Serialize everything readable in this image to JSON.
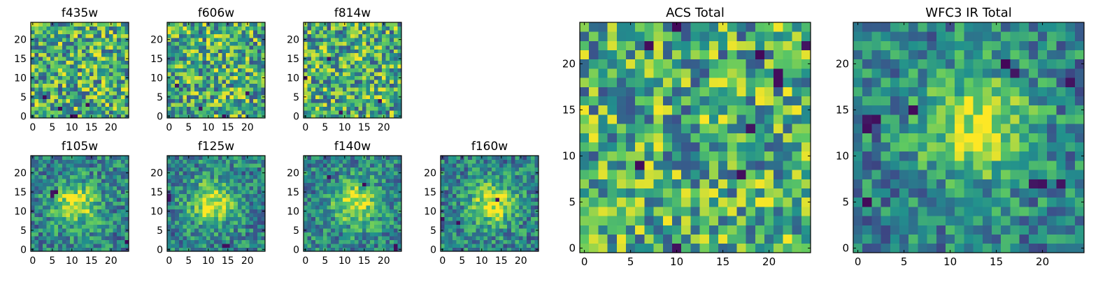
{
  "figure": {
    "colors": {
      "cmap": [
        "#440154",
        "#3b528b",
        "#21908d",
        "#5dc962",
        "#fde725"
      ]
    },
    "panels": [
      {
        "id": "f435w",
        "title": "f435w",
        "xticks": [
          "0",
          "5",
          "10",
          "15",
          "20"
        ],
        "yticks": [
          "0",
          "5",
          "10",
          "15",
          "20"
        ]
      },
      {
        "id": "f606w",
        "title": "f606w",
        "xticks": [
          "0",
          "5",
          "10",
          "15",
          "20"
        ],
        "yticks": [
          "0",
          "5",
          "10",
          "15",
          "20"
        ]
      },
      {
        "id": "f814w",
        "title": "f814w",
        "xticks": [
          "0",
          "5",
          "10",
          "15",
          "20"
        ],
        "yticks": [
          "0",
          "5",
          "10",
          "15",
          "20"
        ]
      },
      {
        "id": "f105w",
        "title": "f105w",
        "xticks": [
          "0",
          "5",
          "10",
          "15",
          "20"
        ],
        "yticks": [
          "0",
          "5",
          "10",
          "15",
          "20"
        ]
      },
      {
        "id": "f125w",
        "title": "f125w",
        "xticks": [
          "0",
          "5",
          "10",
          "15",
          "20"
        ],
        "yticks": [
          "0",
          "5",
          "10",
          "15",
          "20"
        ]
      },
      {
        "id": "f140w",
        "title": "f140w",
        "xticks": [
          "0",
          "5",
          "10",
          "15",
          "20"
        ],
        "yticks": [
          "0",
          "5",
          "10",
          "15",
          "20"
        ]
      },
      {
        "id": "f160w",
        "title": "f160w",
        "xticks": [
          "0",
          "5",
          "10",
          "15",
          "20"
        ],
        "yticks": [
          "0",
          "5",
          "10",
          "15",
          "20"
        ]
      },
      {
        "id": "acs-total",
        "title": "ACS Total",
        "xticks": [
          "0",
          "5",
          "10",
          "15",
          "20"
        ],
        "yticks": [
          "0",
          "5",
          "10",
          "15",
          "20"
        ]
      },
      {
        "id": "wfc3-ir-total",
        "title": "WFC3 IR Total",
        "xticks": [
          "0",
          "5",
          "10",
          "15",
          "20"
        ],
        "yticks": [
          "0",
          "5",
          "10",
          "15",
          "20"
        ]
      }
    ]
  },
  "chart_data": [
    {
      "type": "heatmap",
      "title": "f435w",
      "grid_size": [
        25,
        25
      ],
      "xlim": [
        -0.5,
        24.5
      ],
      "ylim": [
        -0.5,
        24.5
      ],
      "pattern": "noise",
      "dark_pixels": [
        [
          10,
          0
        ],
        [
          11,
          0
        ],
        [
          7,
          2
        ],
        [
          14,
          3
        ],
        [
          3,
          5
        ]
      ]
    },
    {
      "type": "heatmap",
      "title": "f606w",
      "grid_size": [
        25,
        25
      ],
      "xlim": [
        -0.5,
        24.5
      ],
      "ylim": [
        -0.5,
        24.5
      ],
      "pattern": "noise",
      "dark_pixels": [
        [
          8,
          2
        ],
        [
          14,
          0
        ],
        [
          2,
          8
        ],
        [
          20,
          6
        ]
      ]
    },
    {
      "type": "heatmap",
      "title": "f814w",
      "grid_size": [
        25,
        25
      ],
      "xlim": [
        -0.5,
        24.5
      ],
      "ylim": [
        -0.5,
        24.5
      ],
      "pattern": "noise",
      "dark_pixels": [
        [
          9,
          1
        ],
        [
          0,
          10
        ],
        [
          19,
          4
        ],
        [
          6,
          15
        ]
      ]
    },
    {
      "type": "heatmap",
      "title": "f105w",
      "grid_size": [
        25,
        25
      ],
      "xlim": [
        -0.5,
        24.5
      ],
      "ylim": [
        -0.5,
        24.5
      ],
      "pattern": "blob",
      "blob_center": [
        11,
        12
      ],
      "blob_radius": 4,
      "dark_pixels": [
        [
          5,
          14
        ],
        [
          6,
          15
        ],
        [
          5,
          15
        ],
        [
          24,
          2
        ]
      ]
    },
    {
      "type": "heatmap",
      "title": "f125w",
      "grid_size": [
        25,
        25
      ],
      "xlim": [
        -0.5,
        24.5
      ],
      "ylim": [
        -0.5,
        24.5
      ],
      "pattern": "blob",
      "blob_center": [
        11,
        12
      ],
      "blob_radius": 4,
      "dark_pixels": [
        [
          14,
          1
        ],
        [
          15,
          1
        ],
        [
          0,
          13
        ],
        [
          0,
          14
        ]
      ]
    },
    {
      "type": "heatmap",
      "title": "f140w",
      "grid_size": [
        25,
        25
      ],
      "xlim": [
        -0.5,
        24.5
      ],
      "ylim": [
        -0.5,
        24.5
      ],
      "pattern": "blob",
      "blob_center": [
        13,
        12
      ],
      "blob_radius": 4,
      "dark_pixels": [
        [
          15,
          17
        ],
        [
          23,
          1
        ],
        [
          23,
          0
        ],
        [
          6,
          19
        ]
      ]
    },
    {
      "type": "heatmap",
      "title": "f160w",
      "grid_size": [
        25,
        25
      ],
      "xlim": [
        -0.5,
        24.5
      ],
      "ylim": [
        -0.5,
        24.5
      ],
      "pattern": "blob",
      "blob_center": [
        13,
        12
      ],
      "blob_radius": 4,
      "dark_pixels": [
        [
          14,
          13
        ],
        [
          4,
          7
        ],
        [
          0,
          8
        ]
      ]
    },
    {
      "type": "heatmap",
      "title": "ACS Total",
      "grid_size": [
        25,
        25
      ],
      "xlim": [
        -0.5,
        24.5
      ],
      "ylim": [
        -0.5,
        24.5
      ],
      "pattern": "noise",
      "dark_pixels": [
        [
          10,
          24
        ],
        [
          7,
          22
        ],
        [
          24,
          22
        ],
        [
          21,
          19
        ],
        [
          21,
          18
        ],
        [
          6,
          9
        ],
        [
          17,
          8
        ],
        [
          10,
          0
        ],
        [
          19,
          21
        ],
        [
          18,
          13
        ]
      ]
    },
    {
      "type": "heatmap",
      "title": "WFC3 IR Total",
      "grid_size": [
        25,
        25
      ],
      "xlim": [
        -0.5,
        24.5
      ],
      "ylim": [
        -0.5,
        24.5
      ],
      "pattern": "blob",
      "blob_center": [
        13,
        13
      ],
      "blob_radius": 4,
      "dark_pixels": [
        [
          1,
          14
        ],
        [
          2,
          14
        ],
        [
          1,
          13
        ],
        [
          6,
          15
        ],
        [
          16,
          20
        ],
        [
          17,
          19
        ],
        [
          19,
          7
        ],
        [
          20,
          7
        ],
        [
          22,
          7
        ],
        [
          23,
          18
        ],
        [
          1,
          5
        ]
      ]
    }
  ]
}
